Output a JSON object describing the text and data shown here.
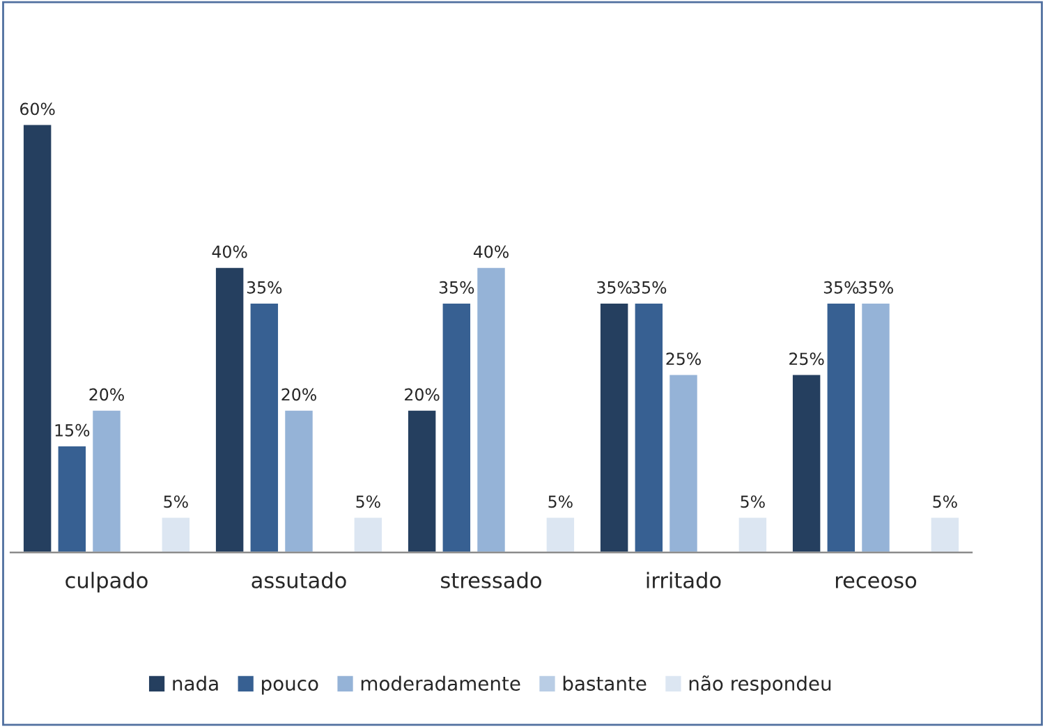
{
  "chart_data": {
    "type": "bar",
    "categories": [
      "culpado",
      "assutado",
      "stressado",
      "irritado",
      "receoso"
    ],
    "series": [
      {
        "name": "nada",
        "color": "#253f5f",
        "values": [
          60,
          40,
          20,
          35,
          25
        ],
        "value_labels": [
          "60%",
          "40%",
          "20%",
          "35%",
          "25%"
        ]
      },
      {
        "name": "pouco",
        "color": "#376092",
        "values": [
          15,
          35,
          35,
          35,
          35
        ],
        "value_labels": [
          "15%",
          "35%",
          "35%",
          "35%",
          "35%"
        ]
      },
      {
        "name": "moderadamente",
        "color": "#95b3d7",
        "values": [
          20,
          20,
          40,
          25,
          35
        ],
        "value_labels": [
          "20%",
          "20%",
          "40%",
          "25%",
          "35%"
        ]
      },
      {
        "name": "bastante",
        "color": "#b9cde5",
        "values": [
          null,
          null,
          null,
          null,
          null
        ]
      },
      {
        "name": "não respondeu",
        "color": "#dce6f2",
        "values": [
          5,
          5,
          5,
          5,
          5
        ],
        "value_labels": [
          "5%",
          "5%",
          "5%",
          "5%",
          "5%"
        ]
      }
    ],
    "legend": "bottom",
    "grid": false
  }
}
